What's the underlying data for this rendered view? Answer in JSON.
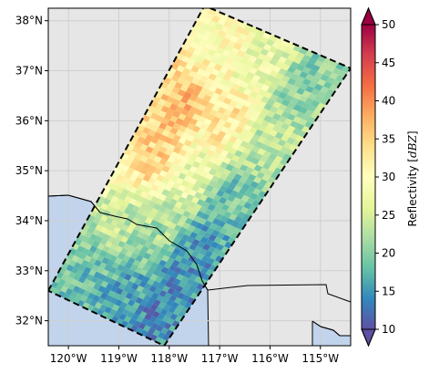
{
  "chart_data": {
    "type": "heatmap",
    "title": "",
    "xlabel": "",
    "ylabel": "",
    "x_ticks": [
      "120°W",
      "119°W",
      "118°W",
      "117°W",
      "116°W",
      "115°W"
    ],
    "x_tick_values": [
      -120,
      -119,
      -118,
      -117,
      -116,
      -115
    ],
    "y_ticks": [
      "32°N",
      "33°N",
      "34°N",
      "35°N",
      "36°N",
      "37°N",
      "38°N"
    ],
    "y_tick_values": [
      32,
      33,
      34,
      35,
      36,
      37,
      38
    ],
    "xlim": [
      -120.4,
      -114.4
    ],
    "ylim": [
      31.5,
      38.25
    ],
    "grid": true,
    "land_color": "#e6e6e6",
    "ocean_color": "#c2d4ec",
    "swath_outline": "dashed black",
    "swath_corners": [
      {
        "lon": -120.4,
        "lat": 32.6
      },
      {
        "lon": -117.3,
        "lat": 38.3
      },
      {
        "lon": -114.4,
        "lat": 37.05
      },
      {
        "lon": -118.1,
        "lat": 31.5
      }
    ],
    "colorbar": {
      "label": "Reflectivity [dBZ]",
      "label_prefix": "Reflectivity [",
      "label_unit": "dBZ",
      "label_suffix": "]",
      "min": 10,
      "max": 50,
      "ticks": [
        "10",
        "15",
        "20",
        "25",
        "30",
        "35",
        "40",
        "45",
        "50"
      ],
      "tick_values": [
        10,
        15,
        20,
        25,
        30,
        35,
        40,
        45,
        50
      ],
      "colormap": "Spectral_r",
      "extend": "both"
    },
    "cells": [
      {
        "u": 0.1,
        "v": 0.2,
        "dbz": 18
      },
      {
        "u": 0.1,
        "v": 0.5,
        "dbz": 16
      },
      {
        "u": 0.1,
        "v": 0.8,
        "dbz": 14
      },
      {
        "u": 0.3,
        "v": 0.2,
        "dbz": 24
      },
      {
        "u": 0.3,
        "v": 0.5,
        "dbz": 22
      },
      {
        "u": 0.3,
        "v": 0.8,
        "dbz": 15
      },
      {
        "u": 0.5,
        "v": 0.2,
        "dbz": 35
      },
      {
        "u": 0.5,
        "v": 0.5,
        "dbz": 27
      },
      {
        "u": 0.5,
        "v": 0.8,
        "dbz": 19
      },
      {
        "u": 0.7,
        "v": 0.2,
        "dbz": 37
      },
      {
        "u": 0.7,
        "v": 0.5,
        "dbz": 33
      },
      {
        "u": 0.7,
        "v": 0.8,
        "dbz": 24
      },
      {
        "u": 0.9,
        "v": 0.2,
        "dbz": 30
      },
      {
        "u": 0.9,
        "v": 0.5,
        "dbz": 27
      },
      {
        "u": 0.9,
        "v": 0.8,
        "dbz": 20
      }
    ]
  }
}
